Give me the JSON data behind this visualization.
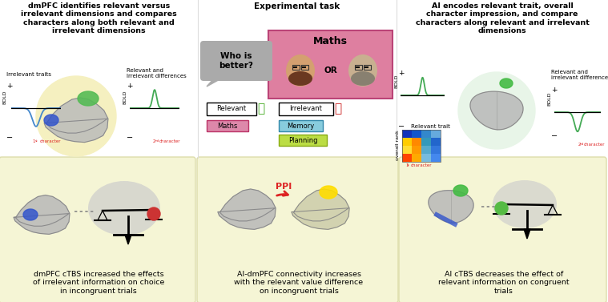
{
  "title_left": "dmPFC identifies relevant versus\nirrelevant dimensions and compares\ncharacters along both relevant and\nirrelevant dimensions",
  "title_middle": "Experimental task",
  "title_right": "AI encodes relevant trait, overall\ncharacter impression, and compare\ncharacters along relevant and irrelevant\ndimensions",
  "caption_bl": "dmPFC cTBS increased the effects\nof irrelevant information on choice\nin incongruent trials",
  "caption_bm": "AI-dmPFC connectivity increases\nwith the relevant value difference\non incongruent trials",
  "caption_br": "AI cTBS decreases the effect of\nrelevant information on congruent\ntrials",
  "irrelevant_traits": "Irrelevant traits",
  "relevant_irrel_left": "Relevant and\nIrrelevant differences",
  "relevant_irrel_right": "Relevant and\nirrelevant differences",
  "relevant_trait_label": "Relevant trait",
  "first_char": "1st character",
  "second_char_left": "2nd character",
  "second_char_right": "2nd character",
  "BOLD": "BOLD",
  "overall_rank": "overall rank",
  "maths_label": "Maths",
  "who_better": "Who is\nbetter?",
  "or_text": "OR",
  "relevant_box": "Relevant",
  "irrelevant_box": "Irrelevant",
  "maths_pink": "Maths",
  "memory_blue": "Memory",
  "planning_yellow": "Planning",
  "PPI_label": "PPI",
  "bg_color": "#ffffff",
  "bottom_bg": "#f5f5d5",
  "yellow_circle": "#f5f0c0",
  "green_circle": "#e8f5e8",
  "brain_gray": "#b8b8b8",
  "brain_edge": "#888888",
  "dmPFC_green": "#55bb55",
  "AI_green": "#44bb44",
  "blue_highlight": "#3355cc",
  "pink_task": "#de7fa0",
  "speech_gray": "#aaaaaa",
  "thumb_green": "#44aa22",
  "thumb_red": "#cc2222",
  "maths_box_pink": "#dd88aa",
  "memory_box_blue": "#88ccdd",
  "planning_box_green": "#bbdd44",
  "matrix_colors": [
    [
      "#1133bb",
      "#1155cc",
      "#3388cc",
      "#66aadd"
    ],
    [
      "#ffcc00",
      "#ff8800",
      "#3399bb",
      "#2266cc"
    ],
    [
      "#ffdd33",
      "#ff9900",
      "#55aacc",
      "#3377dd"
    ],
    [
      "#ff4400",
      "#ffaa00",
      "#77bbdd",
      "#4488ee"
    ]
  ],
  "bold_blue": "#4488cc",
  "bold_green": "#44aa55",
  "scale_red": "#cc3333",
  "scale_green": "#55bb44",
  "ppi_red": "#dd2222",
  "scale_blue_bottom": "#3355cc"
}
